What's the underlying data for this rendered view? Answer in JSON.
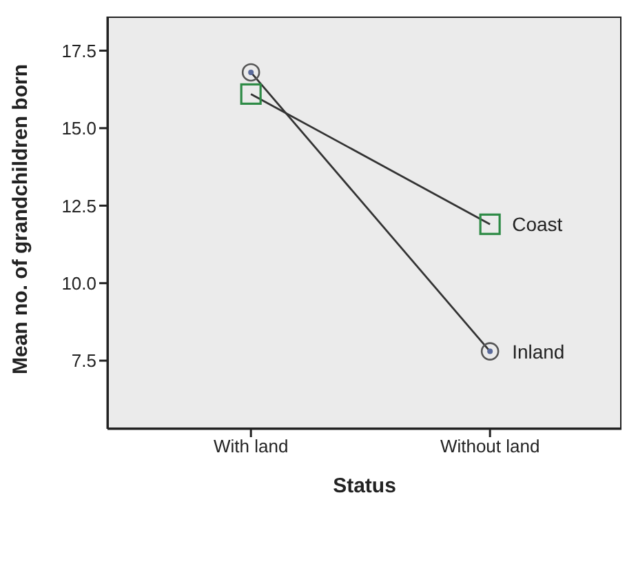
{
  "chart_data": {
    "type": "line",
    "xlabel": "Status",
    "ylabel": "Mean no. of grandchildren born",
    "categories": [
      "With land",
      "Without land"
    ],
    "series": [
      {
        "name": "Coast",
        "color": "#2e8b46",
        "marker": "square",
        "values": [
          16.1,
          11.9
        ]
      },
      {
        "name": "Inland",
        "color": "#5a6a9a",
        "marker": "circle",
        "values": [
          16.8,
          7.8
        ]
      }
    ],
    "ylim": [
      5.3,
      18.6
    ],
    "yticks": [
      {
        "value": 7.5,
        "label": "7.5"
      },
      {
        "value": 10,
        "label": "10.0"
      },
      {
        "value": 12.5,
        "label": "12.5"
      },
      {
        "value": 15,
        "label": "15.0"
      },
      {
        "value": 17.5,
        "label": "17.5"
      }
    ],
    "grid": false,
    "legend": false
  }
}
